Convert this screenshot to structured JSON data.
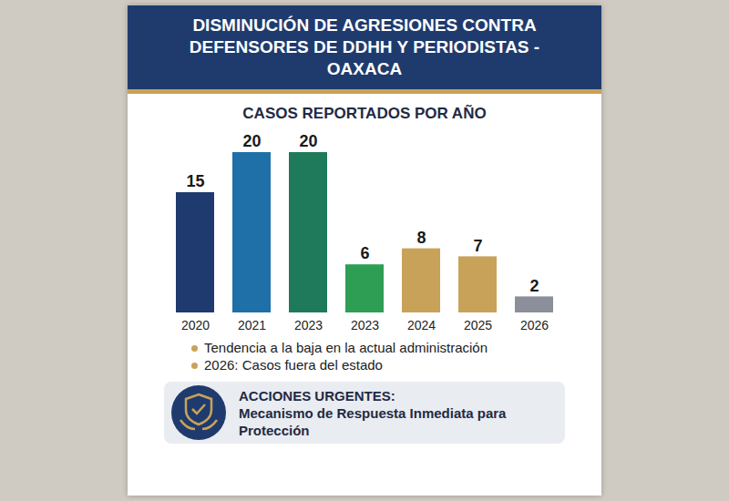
{
  "chart_data": {
    "type": "bar",
    "title": "DISMINUCIÓN DE AGRESIONES CONTRA DEFENSORES DE DDHH Y PERIODISTAS - OAXACA",
    "subtitle": "CASOS REPORTADOS POR AÑO",
    "categories": [
      "2020",
      "2021",
      "2023",
      "2023",
      "2024",
      "2025",
      "2026"
    ],
    "values": [
      15,
      20,
      20,
      6,
      8,
      7,
      2
    ],
    "colors": [
      "#1f3a6e",
      "#1f6fa8",
      "#1e7a5a",
      "#2e9e55",
      "#c9a25a",
      "#c9a25a",
      "#8a8f99"
    ],
    "data_labels": true,
    "tick_labels": "x",
    "annotations": [
      "Tendencia a la baja en la actual administración",
      "2026: Casos fuera del estado"
    ]
  },
  "action_box": {
    "title": "ACCIONES URGENTES:",
    "text": "Mecanismo de Respuesta Inmediata para Protección"
  }
}
